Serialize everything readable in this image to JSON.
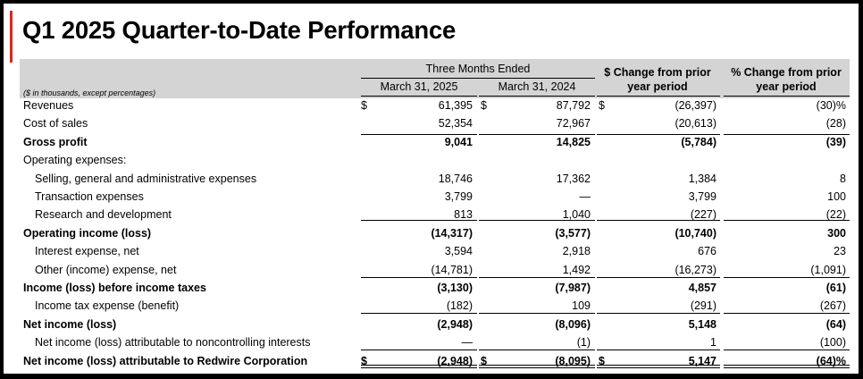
{
  "title": "Q1 2025 Quarter-to-Date Performance",
  "header": {
    "group_label": "Three Months Ended",
    "col_2025": "March 31, 2025",
    "col_2024": "March 31, 2024",
    "change_line1": "$ Change from prior",
    "change_line2": "year period",
    "pct_line1": "% Change from prior",
    "pct_line2": "year period",
    "note": "($ in thousands, except percentages)"
  },
  "rows": [
    {
      "label": "Revenues",
      "bold": false,
      "indent": 0,
      "d1": "$",
      "v2025": "61,395",
      "d2": "$",
      "v2024": "87,792",
      "d3": "$",
      "change": "(26,397)",
      "pct": "(30)%"
    },
    {
      "label": "Cost of sales",
      "bold": false,
      "indent": 0,
      "d1": "",
      "v2025": "52,354",
      "d2": "",
      "v2024": "72,967",
      "d3": "",
      "change": "(20,613)",
      "pct": "(28)"
    },
    {
      "label": "Gross profit",
      "bold": true,
      "indent": 0,
      "d1": "",
      "v2025": "9,041",
      "d2": "",
      "v2024": "14,825",
      "d3": "",
      "change": "(5,784)",
      "pct": "(39)"
    },
    {
      "label": "Operating expenses:",
      "bold": false,
      "indent": 0,
      "d1": "",
      "v2025": "",
      "d2": "",
      "v2024": "",
      "d3": "",
      "change": "",
      "pct": ""
    },
    {
      "label": "Selling, general and administrative expenses",
      "bold": false,
      "indent": 1,
      "d1": "",
      "v2025": "18,746",
      "d2": "",
      "v2024": "17,362",
      "d3": "",
      "change": "1,384",
      "pct": "8"
    },
    {
      "label": "Transaction expenses",
      "bold": false,
      "indent": 1,
      "d1": "",
      "v2025": "3,799",
      "d2": "",
      "v2024": "—",
      "d3": "",
      "change": "3,799",
      "pct": "100"
    },
    {
      "label": "Research and development",
      "bold": false,
      "indent": 1,
      "d1": "",
      "v2025": "813",
      "d2": "",
      "v2024": "1,040",
      "d3": "",
      "change": "(227)",
      "pct": "(22)"
    },
    {
      "label": "Operating income (loss)",
      "bold": true,
      "indent": 0,
      "d1": "",
      "v2025": "(14,317)",
      "d2": "",
      "v2024": "(3,577)",
      "d3": "",
      "change": "(10,740)",
      "pct": "300"
    },
    {
      "label": "Interest expense, net",
      "bold": false,
      "indent": 1,
      "d1": "",
      "v2025": "3,594",
      "d2": "",
      "v2024": "2,918",
      "d3": "",
      "change": "676",
      "pct": "23"
    },
    {
      "label": "Other (income) expense, net",
      "bold": false,
      "indent": 1,
      "d1": "",
      "v2025": "(14,781)",
      "d2": "",
      "v2024": "1,492",
      "d3": "",
      "change": "(16,273)",
      "pct": "(1,091)"
    },
    {
      "label": "Income (loss) before income taxes",
      "bold": true,
      "indent": 0,
      "d1": "",
      "v2025": "(3,130)",
      "d2": "",
      "v2024": "(7,987)",
      "d3": "",
      "change": "4,857",
      "pct": "(61)"
    },
    {
      "label": "Income tax expense (benefit)",
      "bold": false,
      "indent": 1,
      "d1": "",
      "v2025": "(182)",
      "d2": "",
      "v2024": "109",
      "d3": "",
      "change": "(291)",
      "pct": "(267)"
    },
    {
      "label": "Net income (loss)",
      "bold": true,
      "indent": 0,
      "d1": "",
      "v2025": "(2,948)",
      "d2": "",
      "v2024": "(8,096)",
      "d3": "",
      "change": "5,148",
      "pct": "(64)"
    },
    {
      "label": "Net income (loss) attributable to noncontrolling interests",
      "bold": false,
      "indent": 1,
      "d1": "",
      "v2025": "—",
      "d2": "",
      "v2024": "(1)",
      "d3": "",
      "change": "1",
      "pct": "(100)"
    },
    {
      "label": "Net income (loss) attributable to Redwire Corporation",
      "bold": true,
      "indent": 0,
      "d1": "$",
      "v2025": "(2,948)",
      "d2": "$",
      "v2024": "(8,095)",
      "d3": "$",
      "change": "5,147",
      "pct": "(64)%"
    }
  ]
}
